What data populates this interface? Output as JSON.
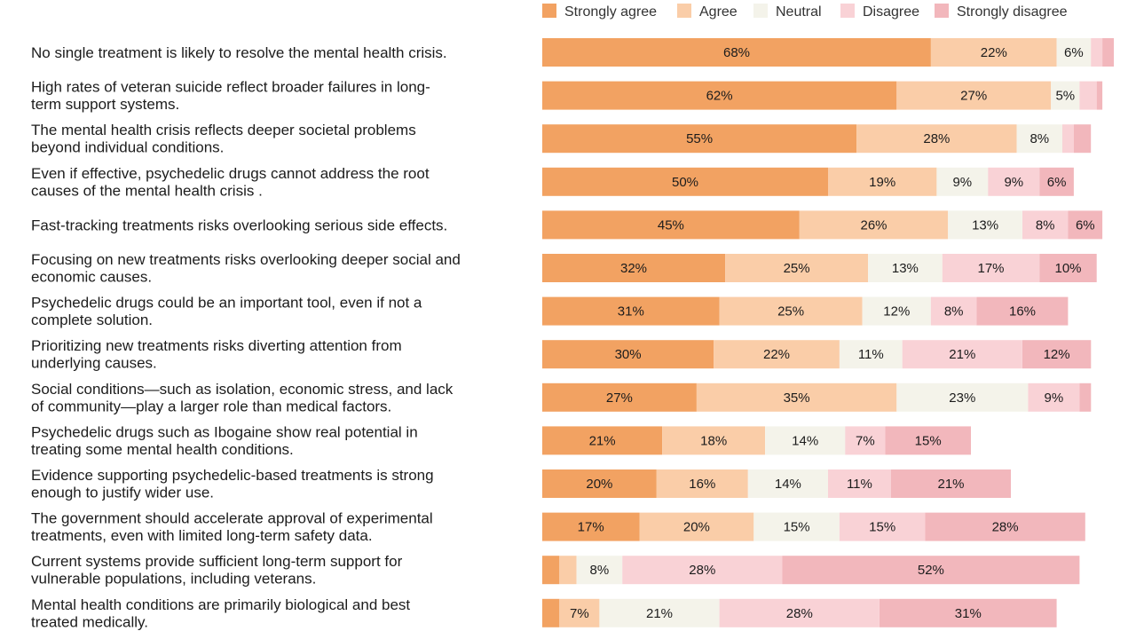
{
  "chart_data": {
    "type": "bar",
    "orientation": "horizontal-stacked-100",
    "title": "",
    "legend_position": "top",
    "xlim": [
      0,
      100
    ],
    "series": [
      {
        "name": "Strongly agree",
        "color": "#F2A262"
      },
      {
        "name": "Agree",
        "color": "#FACDA8"
      },
      {
        "name": "Neutral",
        "color": "#F4F3EA"
      },
      {
        "name": "Disagree",
        "color": "#F9D2D6"
      },
      {
        "name": "Strongly disagree",
        "color": "#F2B7BC"
      }
    ],
    "rows": [
      {
        "statement": [
          "No single treatment is likely to resolve the mental health crisis."
        ],
        "values": [
          68,
          22,
          6,
          2,
          2
        ],
        "labels": [
          "68%",
          "22%",
          "6%",
          "",
          ""
        ]
      },
      {
        "statement": [
          "High rates of veteran suicide reflect broader failures in long-",
          "term support systems."
        ],
        "values": [
          62,
          27,
          5,
          3,
          1
        ],
        "labels": [
          "62%",
          "27%",
          "5%",
          "",
          ""
        ]
      },
      {
        "statement": [
          "The mental health crisis reflects deeper societal problems",
          "beyond individual conditions."
        ],
        "values": [
          55,
          28,
          8,
          2,
          3
        ],
        "labels": [
          "55%",
          "28%",
          "8%",
          "",
          ""
        ]
      },
      {
        "statement": [
          "Even if effective, psychedelic drugs cannot address the root",
          "causes of the mental health crisis ."
        ],
        "values": [
          50,
          19,
          9,
          9,
          6
        ],
        "labels": [
          "50%",
          "19%",
          "9%",
          "9%",
          "6%"
        ]
      },
      {
        "statement": [
          "Fast-tracking treatments risks overlooking serious side effects."
        ],
        "values": [
          45,
          26,
          13,
          8,
          6
        ],
        "labels": [
          "45%",
          "26%",
          "13%",
          "8%",
          "6%"
        ]
      },
      {
        "statement": [
          "Focusing on new treatments risks overlooking deeper social and",
          "economic causes."
        ],
        "values": [
          32,
          25,
          13,
          17,
          10
        ],
        "labels": [
          "32%",
          "25%",
          "13%",
          "17%",
          "10%"
        ]
      },
      {
        "statement": [
          "Psychedelic drugs could be an important tool, even if not a",
          "complete solution."
        ],
        "values": [
          31,
          25,
          12,
          8,
          16
        ],
        "labels": [
          "31%",
          "25%",
          "12%",
          "8%",
          "16%"
        ]
      },
      {
        "statement": [
          "Prioritizing new treatments risks diverting attention from",
          "underlying causes."
        ],
        "values": [
          30,
          22,
          11,
          21,
          12
        ],
        "labels": [
          "30%",
          "22%",
          "11%",
          "21%",
          "12%"
        ]
      },
      {
        "statement": [
          "Social conditions—such as isolation, economic stress, and lack",
          "of community—play a larger role than medical factors."
        ],
        "values": [
          27,
          35,
          23,
          9,
          2
        ],
        "labels": [
          "27%",
          "35%",
          "23%",
          "9%",
          ""
        ]
      },
      {
        "statement": [
          "Psychedelic drugs such as Ibogaine show real potential in",
          "treating some mental health conditions."
        ],
        "values": [
          21,
          18,
          14,
          7,
          15
        ],
        "labels": [
          "21%",
          "18%",
          "14%",
          "7%",
          "15%"
        ]
      },
      {
        "statement": [
          "Evidence supporting psychedelic-based treatments is strong",
          "enough to justify wider use."
        ],
        "values": [
          20,
          16,
          14,
          11,
          21
        ],
        "labels": [
          "20%",
          "16%",
          "14%",
          "11%",
          "21%"
        ]
      },
      {
        "statement": [
          "The government should accelerate approval of experimental",
          "treatments, even with limited long-term safety data."
        ],
        "values": [
          17,
          20,
          15,
          15,
          28
        ],
        "labels": [
          "17%",
          "20%",
          "15%",
          "15%",
          "28%"
        ]
      },
      {
        "statement": [
          "Current systems provide sufficient long-term support for",
          "vulnerable populations, including veterans."
        ],
        "values": [
          3,
          3,
          8,
          28,
          52
        ],
        "labels": [
          "",
          "",
          "8%",
          "28%",
          "52%"
        ]
      },
      {
        "statement": [
          "Mental health conditions are primarily biological and best",
          "treated medically."
        ],
        "values": [
          3,
          7,
          21,
          28,
          31
        ],
        "labels": [
          "",
          "7%",
          "21%",
          "28%",
          "31%"
        ]
      }
    ]
  }
}
